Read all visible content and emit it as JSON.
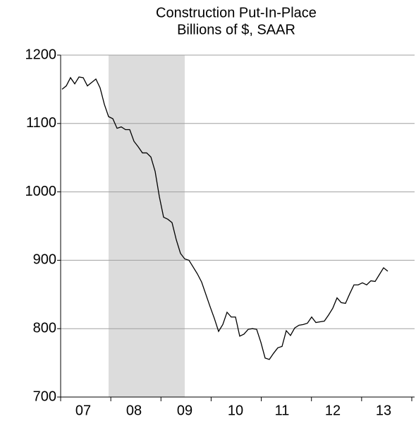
{
  "chart_data": {
    "type": "line",
    "title": "Construction Put-In-Place",
    "subtitle": "Billions of $, SAAR",
    "categories": [
      null,
      null,
      null,
      null,
      null,
      "07",
      null,
      null,
      null,
      null,
      null,
      null,
      null,
      null,
      null,
      null,
      null,
      "08",
      null,
      null,
      null,
      null,
      null,
      null,
      null,
      null,
      null,
      null,
      null,
      "09",
      null,
      null,
      null,
      null,
      null,
      null,
      null,
      null,
      null,
      null,
      null,
      "10",
      null,
      null,
      null,
      null,
      null,
      null,
      null,
      null,
      null,
      null,
      "11",
      null,
      null,
      null,
      null,
      null,
      null,
      null,
      null,
      null,
      null,
      null,
      "12",
      null,
      null,
      null,
      null,
      null,
      null,
      null,
      null,
      null,
      null,
      null,
      "13",
      null
    ],
    "series": [
      {
        "name": "Construction Put-In-Place",
        "color": "#000000",
        "values": [
          1150,
          1155,
          1167,
          1158,
          1168,
          1167,
          1155,
          1160,
          1165,
          1152,
          1128,
          1110,
          1107,
          1093,
          1095,
          1091,
          1091,
          1074,
          1066,
          1057,
          1057,
          1051,
          1030,
          993,
          963,
          960,
          955,
          930,
          910,
          902,
          900,
          890,
          880,
          868,
          850,
          832,
          815,
          796,
          806,
          824,
          817,
          817,
          789,
          792,
          799,
          800,
          799,
          780,
          757,
          755,
          764,
          772,
          774,
          797,
          790,
          801,
          805,
          806,
          808,
          817,
          809,
          810,
          811,
          820,
          830,
          845,
          838,
          837,
          851,
          864,
          864,
          867,
          864,
          870,
          869,
          879,
          889,
          884
        ]
      }
    ],
    "ylim": [
      700,
      1200
    ],
    "yticks": [
      700,
      800,
      900,
      1000,
      1100,
      1200
    ],
    "grid": true,
    "shading": {
      "from": 11,
      "to": 29,
      "color": "#dcdcdc"
    }
  }
}
